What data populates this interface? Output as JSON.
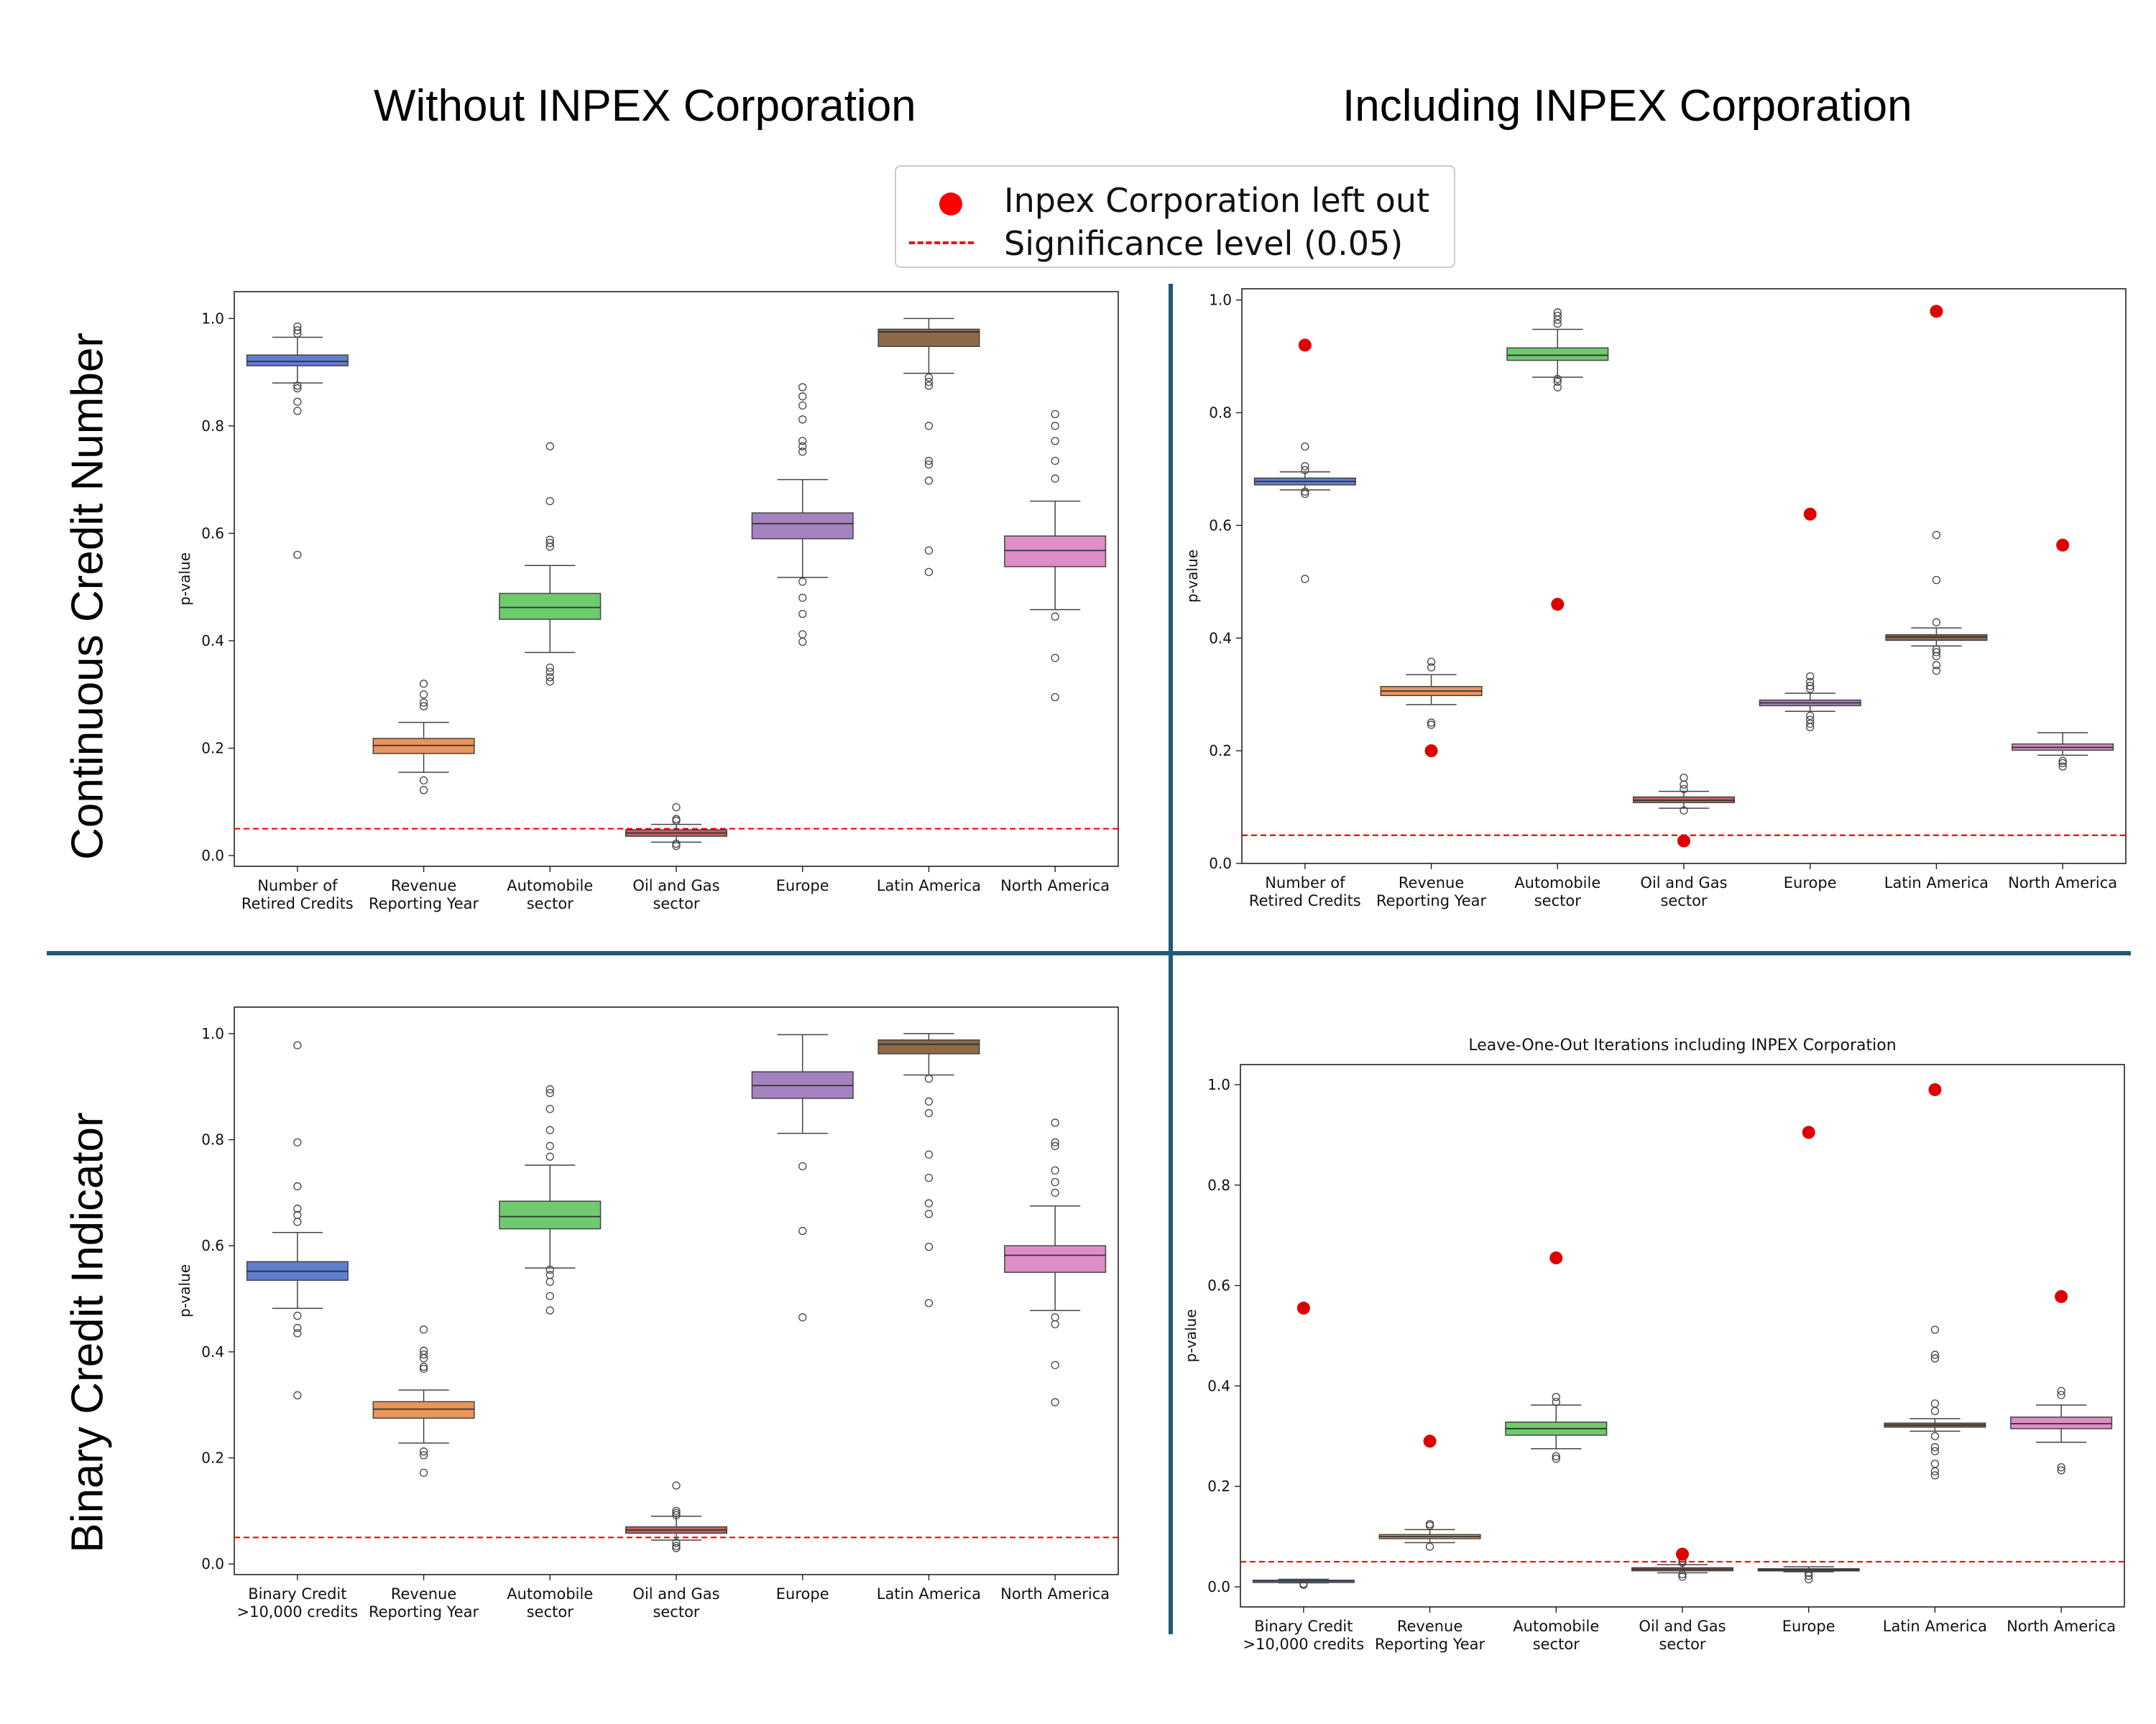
{
  "figure": {
    "col_titles": [
      "Without INPEX Corporation",
      "Including INPEX Corporation"
    ],
    "row_titles": [
      "Continuous Credit Number",
      "Binary Credit Indicator"
    ],
    "legend": {
      "entries": [
        "Inpex Corporation left out",
        "Significance level (0.05)"
      ]
    },
    "colors": {
      "boxes": [
        "#5f7fd1",
        "#e9955a",
        "#6dcb6d",
        "#c4615f",
        "#a482c0",
        "#8e6a49",
        "#dd8ec8"
      ],
      "marker": "#dd0000",
      "significance": "#ff0000",
      "divider": "#1d5a7a"
    }
  },
  "chart_data": [
    {
      "type": "box",
      "title": "",
      "ylabel": "p-value",
      "ylim": [
        -0.02,
        1.05
      ],
      "yticks": [
        "0.0",
        "0.2",
        "0.4",
        "0.6",
        "0.8",
        "1.0"
      ],
      "significance_level": 0.05,
      "categories": [
        "Number of\nRetired Credits",
        "Revenue\nReporting Year",
        "Automobile\nsector",
        "Oil and Gas\nsector",
        "Europe",
        "Latin America",
        "North America"
      ],
      "boxes": [
        {
          "q1": 0.912,
          "median": 0.92,
          "q3": 0.932,
          "whisker_low": 0.88,
          "whisker_high": 0.965,
          "outliers": [
            0.985,
            0.978,
            0.972,
            0.875,
            0.87,
            0.845,
            0.828,
            0.56
          ]
        },
        {
          "q1": 0.19,
          "median": 0.205,
          "q3": 0.218,
          "whisker_low": 0.155,
          "whisker_high": 0.248,
          "outliers": [
            0.32,
            0.3,
            0.285,
            0.278,
            0.14,
            0.122
          ]
        },
        {
          "q1": 0.44,
          "median": 0.462,
          "q3": 0.488,
          "whisker_low": 0.378,
          "whisker_high": 0.54,
          "outliers": [
            0.762,
            0.66,
            0.588,
            0.582,
            0.575,
            0.35,
            0.342,
            0.332,
            0.324
          ]
        },
        {
          "q1": 0.036,
          "median": 0.042,
          "q3": 0.048,
          "whisker_low": 0.025,
          "whisker_high": 0.058,
          "outliers": [
            0.09,
            0.068,
            0.065,
            0.022,
            0.018
          ]
        },
        {
          "q1": 0.59,
          "median": 0.618,
          "q3": 0.638,
          "whisker_low": 0.518,
          "whisker_high": 0.7,
          "outliers": [
            0.872,
            0.855,
            0.838,
            0.812,
            0.772,
            0.762,
            0.752,
            0.51,
            0.48,
            0.45,
            0.412,
            0.398
          ]
        },
        {
          "q1": 0.948,
          "median": 0.975,
          "q3": 0.98,
          "whisker_low": 0.898,
          "whisker_high": 1.0,
          "outliers": [
            0.89,
            0.882,
            0.875,
            0.8,
            0.735,
            0.728,
            0.698,
            0.568,
            0.528
          ]
        },
        {
          "q1": 0.538,
          "median": 0.568,
          "q3": 0.595,
          "whisker_low": 0.458,
          "whisker_high": 0.66,
          "outliers": [
            0.822,
            0.8,
            0.772,
            0.735,
            0.702,
            0.445,
            0.368,
            0.295
          ]
        }
      ]
    },
    {
      "type": "box",
      "title": "",
      "ylabel": "p-value",
      "ylim": [
        0.0,
        1.02
      ],
      "yticks": [
        "0.0",
        "0.2",
        "0.4",
        "0.6",
        "0.8",
        "1.0"
      ],
      "significance_level": 0.05,
      "categories": [
        "Number of\nRetired Credits",
        "Revenue\nReporting Year",
        "Automobile\nsector",
        "Oil and Gas\nsector",
        "Europe",
        "Latin America",
        "North America"
      ],
      "boxes": [
        {
          "q1": 0.672,
          "median": 0.678,
          "q3": 0.684,
          "whisker_low": 0.663,
          "whisker_high": 0.695,
          "outliers": [
            0.74,
            0.705,
            0.698,
            0.66,
            0.656,
            0.505
          ]
        },
        {
          "q1": 0.298,
          "median": 0.306,
          "q3": 0.314,
          "whisker_low": 0.282,
          "whisker_high": 0.335,
          "outliers": [
            0.358,
            0.348,
            0.25,
            0.246
          ]
        },
        {
          "q1": 0.893,
          "median": 0.902,
          "q3": 0.915,
          "whisker_low": 0.863,
          "whisker_high": 0.948,
          "outliers": [
            0.978,
            0.972,
            0.965,
            0.958,
            0.86,
            0.855,
            0.845
          ]
        },
        {
          "q1": 0.108,
          "median": 0.112,
          "q3": 0.118,
          "whisker_low": 0.098,
          "whisker_high": 0.128,
          "outliers": [
            0.152,
            0.14,
            0.132,
            0.094
          ]
        },
        {
          "q1": 0.28,
          "median": 0.285,
          "q3": 0.29,
          "whisker_low": 0.27,
          "whisker_high": 0.302,
          "outliers": [
            0.332,
            0.322,
            0.315,
            0.31,
            0.262,
            0.255,
            0.248,
            0.242
          ]
        },
        {
          "q1": 0.396,
          "median": 0.402,
          "q3": 0.406,
          "whisker_low": 0.386,
          "whisker_high": 0.418,
          "outliers": [
            0.583,
            0.503,
            0.428,
            0.38,
            0.375,
            0.368,
            0.352,
            0.342
          ]
        },
        {
          "q1": 0.201,
          "median": 0.206,
          "q3": 0.212,
          "whisker_low": 0.192,
          "whisker_high": 0.232,
          "outliers": [
            0.182,
            0.178,
            0.172
          ]
        }
      ],
      "left_out_points": [
        0.92,
        0.2,
        0.46,
        0.04,
        0.62,
        0.98,
        0.565
      ]
    },
    {
      "type": "box",
      "title": "",
      "ylabel": "p-value",
      "ylim": [
        -0.02,
        1.05
      ],
      "yticks": [
        "0.0",
        "0.2",
        "0.4",
        "0.6",
        "0.8",
        "1.0"
      ],
      "significance_level": 0.05,
      "categories": [
        "Binary Credit\n>10,000 credits",
        "Revenue\nReporting Year",
        "Automobile\nsector",
        "Oil and Gas\nsector",
        "Europe",
        "Latin America",
        "North America"
      ],
      "boxes": [
        {
          "q1": 0.535,
          "median": 0.552,
          "q3": 0.57,
          "whisker_low": 0.482,
          "whisker_high": 0.625,
          "outliers": [
            0.978,
            0.795,
            0.712,
            0.67,
            0.658,
            0.645,
            0.468,
            0.445,
            0.435,
            0.318
          ]
        },
        {
          "q1": 0.275,
          "median": 0.292,
          "q3": 0.306,
          "whisker_low": 0.228,
          "whisker_high": 0.328,
          "outliers": [
            0.442,
            0.402,
            0.395,
            0.388,
            0.372,
            0.368,
            0.212,
            0.205,
            0.172
          ]
        },
        {
          "q1": 0.632,
          "median": 0.655,
          "q3": 0.684,
          "whisker_low": 0.558,
          "whisker_high": 0.752,
          "outliers": [
            0.895,
            0.888,
            0.858,
            0.818,
            0.788,
            0.768,
            0.555,
            0.545,
            0.532,
            0.505,
            0.478
          ]
        },
        {
          "q1": 0.058,
          "median": 0.064,
          "q3": 0.07,
          "whisker_low": 0.045,
          "whisker_high": 0.09,
          "outliers": [
            0.148,
            0.1,
            0.096,
            0.092,
            0.04,
            0.034,
            0.03
          ]
        },
        {
          "q1": 0.878,
          "median": 0.902,
          "q3": 0.928,
          "whisker_low": 0.812,
          "whisker_high": 0.998,
          "outliers": [
            0.75,
            0.628,
            0.465
          ]
        },
        {
          "q1": 0.962,
          "median": 0.98,
          "q3": 0.988,
          "whisker_low": 0.922,
          "whisker_high": 1.0,
          "outliers": [
            0.915,
            0.872,
            0.85,
            0.772,
            0.728,
            0.68,
            0.66,
            0.598,
            0.492
          ]
        },
        {
          "q1": 0.55,
          "median": 0.582,
          "q3": 0.6,
          "whisker_low": 0.478,
          "whisker_high": 0.675,
          "outliers": [
            0.832,
            0.795,
            0.788,
            0.742,
            0.72,
            0.7,
            0.465,
            0.452,
            0.375,
            0.305
          ]
        }
      ]
    },
    {
      "type": "box",
      "title": "Leave-One-Out Iterations including INPEX Corporation",
      "ylabel": "p-value",
      "ylim": [
        -0.04,
        1.04
      ],
      "yticks": [
        "0.0",
        "0.2",
        "0.4",
        "0.6",
        "0.8",
        "1.0"
      ],
      "significance_level": 0.05,
      "categories": [
        "Binary Credit\n>10,000 credits",
        "Revenue\nReporting Year",
        "Automobile\nsector",
        "Oil and Gas\nsector",
        "Europe",
        "Latin America",
        "North America"
      ],
      "boxes": [
        {
          "q1": 0.01,
          "median": 0.012,
          "q3": 0.013,
          "whisker_low": 0.008,
          "whisker_high": 0.015,
          "outliers": [
            0.006,
            0.004
          ]
        },
        {
          "q1": 0.096,
          "median": 0.1,
          "q3": 0.104,
          "whisker_low": 0.088,
          "whisker_high": 0.114,
          "outliers": [
            0.125,
            0.122,
            0.08
          ]
        },
        {
          "q1": 0.302,
          "median": 0.315,
          "q3": 0.328,
          "whisker_low": 0.275,
          "whisker_high": 0.362,
          "outliers": [
            0.378,
            0.368,
            0.26,
            0.255
          ]
        },
        {
          "q1": 0.032,
          "median": 0.035,
          "q3": 0.038,
          "whisker_low": 0.028,
          "whisker_high": 0.044,
          "outliers": [
            0.052,
            0.048,
            0.025,
            0.02
          ]
        },
        {
          "q1": 0.032,
          "median": 0.034,
          "q3": 0.036,
          "whisker_low": 0.03,
          "whisker_high": 0.04,
          "outliers": [
            0.028,
            0.022,
            0.015
          ]
        },
        {
          "q1": 0.318,
          "median": 0.322,
          "q3": 0.326,
          "whisker_low": 0.31,
          "whisker_high": 0.335,
          "outliers": [
            0.512,
            0.462,
            0.455,
            0.365,
            0.35,
            0.3,
            0.278,
            0.27,
            0.245,
            0.23,
            0.222
          ]
        },
        {
          "q1": 0.315,
          "median": 0.325,
          "q3": 0.338,
          "whisker_low": 0.288,
          "whisker_high": 0.362,
          "outliers": [
            0.39,
            0.382,
            0.238,
            0.232
          ]
        }
      ],
      "left_out_points": [
        0.555,
        0.29,
        0.655,
        0.065,
        0.905,
        0.99,
        0.578
      ]
    }
  ]
}
